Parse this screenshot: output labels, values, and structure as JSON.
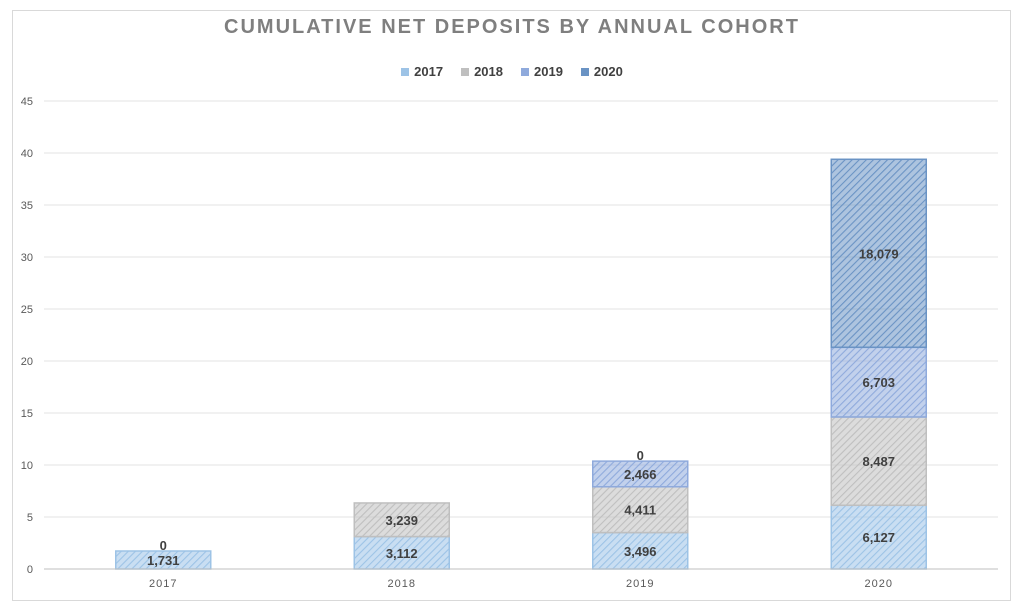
{
  "chart_data": {
    "type": "bar",
    "stacked": true,
    "title": "CUMULATIVE NET DEPOSITS BY ANNUAL COHORT",
    "categories": [
      "2017",
      "2018",
      "2019",
      "2020"
    ],
    "ylim": [
      0,
      45
    ],
    "yticks": [
      "0",
      "5",
      "10",
      "15",
      "20",
      "25",
      "30",
      "35",
      "40",
      "45"
    ],
    "grid": true,
    "legend_position": "top",
    "series": [
      {
        "name": "2017",
        "color": "#9dc3e6",
        "values": [
          1.731,
          3.112,
          3.496,
          6.127
        ],
        "labels": [
          "1,731",
          "3,112",
          "3,496",
          "6,127"
        ]
      },
      {
        "name": "2018",
        "color": "#bfbfbf",
        "values": [
          0,
          3.239,
          4.411,
          8.487
        ],
        "labels": [
          "0",
          "3,239",
          "4,411",
          "8,487"
        ]
      },
      {
        "name": "2019",
        "color": "#8faadc",
        "values": [
          null,
          null,
          2.466,
          6.703
        ],
        "labels": [
          null,
          null,
          "2,466",
          "6,703"
        ]
      },
      {
        "name": "2020",
        "color": "#6a93c4",
        "values": [
          null,
          null,
          0,
          18.079
        ],
        "labels": [
          null,
          null,
          "0",
          "18,079"
        ]
      }
    ]
  }
}
